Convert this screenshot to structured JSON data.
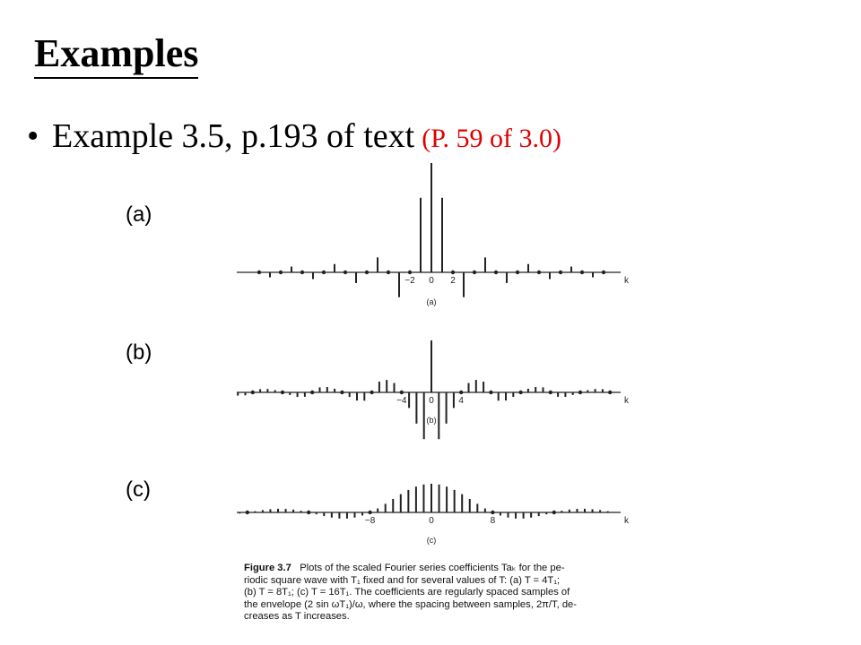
{
  "slide": {
    "title": "Examples",
    "bullet_text": "Example 3.5, p.193 of text",
    "bullet_ref": "(P. 59 of 3.0)",
    "panel_labels": [
      "(a)",
      "(b)",
      "(c)"
    ]
  },
  "caption": {
    "label": "Figure 3.7",
    "lines": [
      "Plots of the scaled Fourier series coefficients Taₖ for the pe-",
      "riodic square wave with T₁ fixed and for several values of T: (a) T = 4T₁;",
      "(b) T = 8T₁; (c) T = 16T₁. The coefficients are regularly spaced samples of",
      "the envelope (2 sin ωT₁)/ω, where the spacing between samples, 2π/T, de-",
      "creases as T increases."
    ]
  },
  "chart_data": [
    {
      "type": "stem",
      "sublabel": "(a)",
      "xlabel": "k",
      "tick_labels": [
        "−2",
        "0",
        "2"
      ],
      "tick_values": [
        -2,
        0,
        2
      ],
      "k": [
        -16,
        -15,
        -14,
        -13,
        -12,
        -11,
        -10,
        -9,
        -8,
        -7,
        -6,
        -5,
        -4,
        -3,
        -2,
        -1,
        0,
        1,
        2,
        3,
        4,
        5,
        6,
        7,
        8,
        9,
        10,
        11,
        12,
        13,
        14,
        15,
        16
      ],
      "values": [
        0,
        -0.0455,
        0,
        0.0524,
        0,
        -0.0619,
        0,
        0.0758,
        0,
        -0.0974,
        0,
        0.1364,
        0,
        -0.2274,
        0,
        0.6821,
        1,
        0.6821,
        0,
        -0.2274,
        0,
        0.1364,
        0,
        -0.0974,
        0,
        0.0758,
        0,
        -0.0619,
        0,
        0.0524,
        0,
        -0.0455,
        0
      ]
    },
    {
      "type": "stem",
      "sublabel": "(b)",
      "xlabel": "k",
      "tick_labels": [
        "−4",
        "0",
        "4"
      ],
      "tick_values": [
        -4,
        0,
        4
      ],
      "k": [
        -32,
        -31,
        -30,
        -29,
        -28,
        -27,
        -26,
        -25,
        -24,
        -23,
        -22,
        -21,
        -20,
        -19,
        -18,
        -17,
        -16,
        -15,
        -14,
        -13,
        -12,
        -11,
        -10,
        -9,
        -8,
        -7,
        -6,
        -5,
        -4,
        -3,
        -2,
        -1,
        0,
        1,
        2,
        3,
        4,
        5,
        6,
        7,
        8,
        9,
        10,
        11,
        12,
        13,
        14,
        15,
        16,
        17,
        18,
        19,
        20,
        21,
        22,
        23,
        24,
        25,
        26,
        27,
        28,
        29,
        30,
        31,
        32
      ],
      "values": [
        0,
        0.0232,
        0.0241,
        0.016,
        0,
        -0.0182,
        -0.031,
        -0.0289,
        0,
        0.031,
        0.0331,
        0.0217,
        0,
        -0.0253,
        -0.0431,
        -0.0425,
        0,
        0.048,
        0.0518,
        0.0349,
        0,
        -0.0437,
        -0.0783,
        -0.08,
        0,
        0.1033,
        0.12,
        0.09,
        0,
        -0.15,
        -0.3,
        -0.45,
        0.5,
        -0.45,
        -0.3,
        -0.15,
        0,
        0.09,
        0.12,
        0.1033,
        0,
        -0.08,
        -0.0783,
        -0.0437,
        0,
        0.0349,
        0.0518,
        0.048,
        0,
        -0.0425,
        -0.0431,
        -0.0253,
        0,
        0.0217,
        0.0331,
        0.031,
        0,
        -0.0289,
        -0.031,
        -0.0182,
        0,
        0.016,
        0.0241,
        0.0232,
        0
      ]
    },
    {
      "type": "stem",
      "sublabel": "(c)",
      "xlabel": "k",
      "tick_labels": [
        "−8",
        "0",
        "8"
      ],
      "tick_values": [
        -8,
        0,
        8
      ],
      "k_step": 1,
      "k_range": [
        -32,
        32
      ],
      "envelope": "2 sin(ωT₁)/ω",
      "zero_spacing": 8
    }
  ]
}
